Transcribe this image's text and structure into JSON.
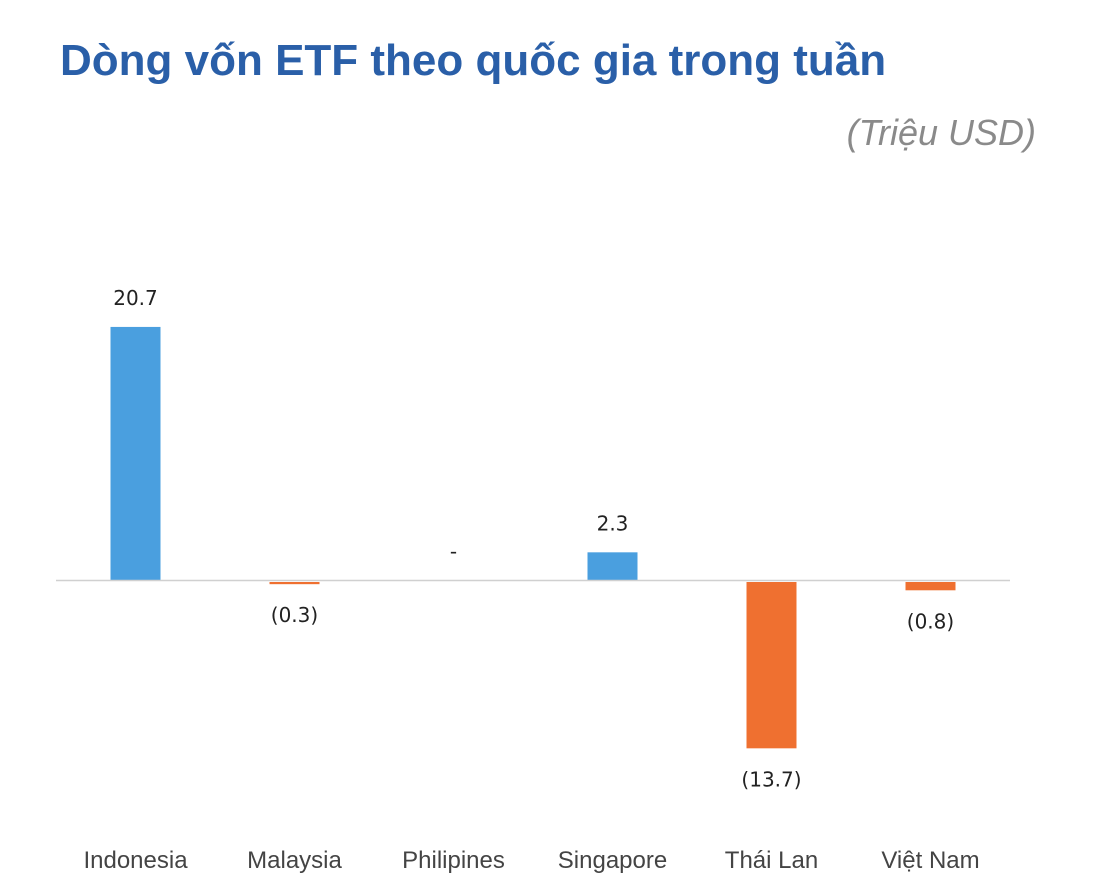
{
  "title": "Dòng vốn ETF theo quốc gia trong tuần",
  "unit_label": "(Triệu USD)",
  "colors": {
    "title": "#2a5fa8",
    "positive": "#4a9fdf",
    "negative": "#ef7030",
    "axis": "#d0d0d0",
    "unit": "#8a8a8a"
  },
  "chart_data": {
    "type": "bar",
    "categories": [
      "Indonesia",
      "Malaysia",
      "Philipines",
      "Singapore",
      "Thái Lan",
      "Việt Nam"
    ],
    "values": [
      20.7,
      -0.3,
      0,
      2.3,
      -13.7,
      -0.8
    ],
    "data_labels": [
      "20.7",
      "(0.3)",
      "-",
      "2.3",
      "(13.7)",
      "(0.8)"
    ],
    "grid": false,
    "legend": "none"
  }
}
